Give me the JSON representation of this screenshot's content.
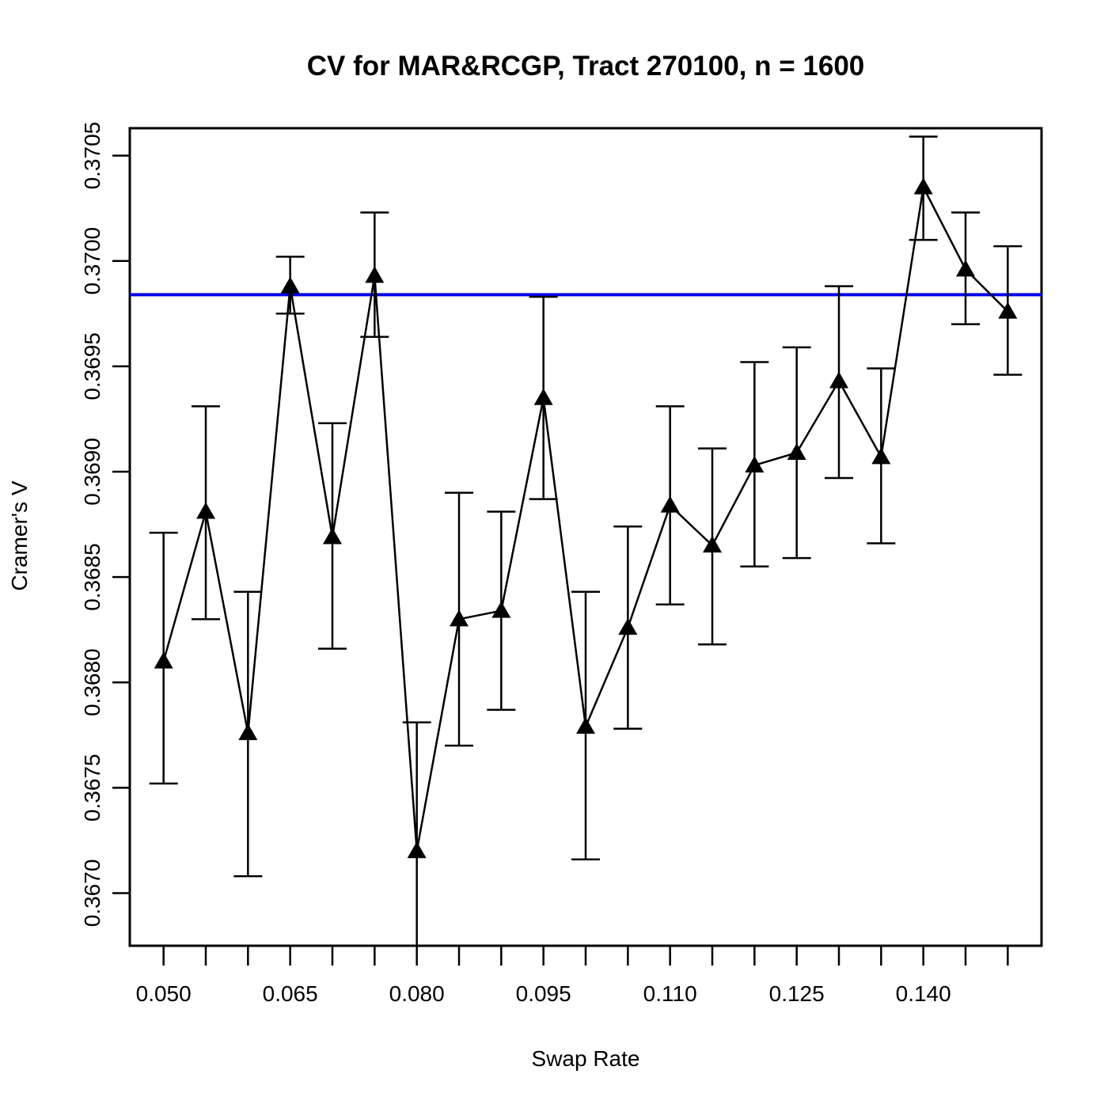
{
  "chart_data": {
    "type": "line",
    "title": "CV for MAR&RCGP, Tract 270100, n = 1600",
    "xlabel": "Swap Rate",
    "ylabel": "Cramer's V",
    "xlim": [
      0.046,
      0.154
    ],
    "ylim": [
      0.36675,
      0.37063
    ],
    "x_ticks": [
      0.05,
      0.055,
      0.06,
      0.065,
      0.07,
      0.075,
      0.08,
      0.085,
      0.09,
      0.095,
      0.1,
      0.105,
      0.11,
      0.115,
      0.12,
      0.125,
      0.13,
      0.135,
      0.14,
      0.145,
      0.15
    ],
    "x_tick_labels": [
      "0.050",
      "",
      "",
      "0.065",
      "",
      "",
      "0.080",
      "",
      "",
      "0.095",
      "",
      "",
      "0.110",
      "",
      "",
      "0.125",
      "",
      "",
      "0.140",
      "",
      ""
    ],
    "y_ticks": [
      0.367,
      0.3675,
      0.368,
      0.3685,
      0.369,
      0.3695,
      0.37,
      0.3705
    ],
    "y_tick_labels": [
      "0.3670",
      "0.3675",
      "0.3680",
      "0.3685",
      "0.3690",
      "0.3695",
      "0.3700",
      "0.3705"
    ],
    "reference_line": {
      "y": 0.36984,
      "color": "#0000ee",
      "orientation": "horizontal"
    },
    "series": [
      {
        "name": "Cramer's V",
        "marker": "filled-triangle",
        "color": "#000000",
        "x": [
          0.05,
          0.055,
          0.06,
          0.065,
          0.07,
          0.075,
          0.08,
          0.085,
          0.09,
          0.095,
          0.1,
          0.105,
          0.11,
          0.115,
          0.12,
          0.125,
          0.13,
          0.135,
          0.14,
          0.145,
          0.15
        ],
        "y": [
          0.3681,
          0.36881,
          0.36776,
          0.36988,
          0.36869,
          0.36993,
          0.3672,
          0.3683,
          0.36834,
          0.36935,
          0.36779,
          0.36826,
          0.36884,
          0.36865,
          0.36903,
          0.36909,
          0.36943,
          0.36907,
          0.37035,
          0.36996,
          0.36976
        ],
        "y_lower": [
          0.36752,
          0.3683,
          0.36708,
          0.36975,
          0.36816,
          0.36964,
          0.36675,
          0.3677,
          0.36787,
          0.36887,
          0.36716,
          0.36778,
          0.36837,
          0.36818,
          0.36855,
          0.36859,
          0.36897,
          0.36866,
          0.3701,
          0.3697,
          0.36946
        ],
        "y_upper": [
          0.36871,
          0.36931,
          0.36843,
          0.37002,
          0.36923,
          0.37023,
          0.36781,
          0.3689,
          0.36881,
          0.36983,
          0.36843,
          0.36874,
          0.36931,
          0.36911,
          0.36952,
          0.36959,
          0.36988,
          0.36949,
          0.37059,
          0.37023,
          0.37007
        ]
      }
    ]
  }
}
